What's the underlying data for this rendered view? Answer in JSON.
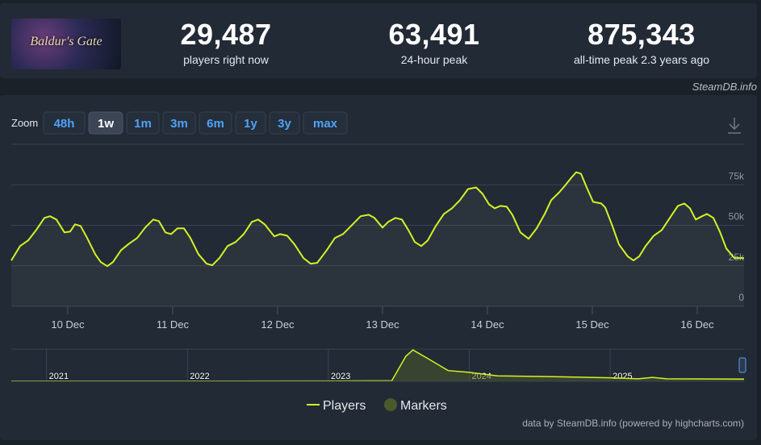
{
  "game_logo": "Baldur's Gate",
  "stats": [
    {
      "value": "29,487",
      "label": "players right now"
    },
    {
      "value": "63,491",
      "label": "24-hour peak"
    },
    {
      "value": "875,343",
      "label": "all-time peak 2.3 years ago"
    }
  ],
  "brand": "SteamDB.info",
  "zoom": {
    "label": "Zoom",
    "options": [
      "48h",
      "1w",
      "1m",
      "3m",
      "6m",
      "1y",
      "3y",
      "max"
    ],
    "active": 1
  },
  "credit": "data by SteamDB.info (powered by highcharts.com)",
  "chart_data": {
    "type": "line",
    "xlim": [
      9.462,
      16.446
    ],
    "xticks": [
      {
        "value": 10,
        "label": "10 Dec"
      },
      {
        "value": 11,
        "label": "11 Dec"
      },
      {
        "value": 12,
        "label": "12 Dec"
      },
      {
        "value": 13,
        "label": "13 Dec"
      },
      {
        "value": 14,
        "label": "14 Dec"
      },
      {
        "value": 15,
        "label": "15 Dec"
      },
      {
        "value": 16,
        "label": "16 Dec"
      }
    ],
    "ylim": [
      0,
      100000
    ],
    "yticks": [
      0,
      {
        "value": 25000,
        "label": "25k"
      },
      {
        "value": 50000,
        "label": "50k"
      },
      {
        "value": 75000,
        "label": "75k"
      }
    ],
    "grid": true,
    "series": [
      {
        "name": "Players",
        "color": "#d4f225",
        "x": [
          9.462,
          9.546,
          9.623,
          9.7,
          9.777,
          9.831,
          9.892,
          9.969,
          10.023,
          10.069,
          10.123,
          10.185,
          10.262,
          10.315,
          10.377,
          10.431,
          10.508,
          10.585,
          10.662,
          10.738,
          10.815,
          10.869,
          10.931,
          10.985,
          11.046,
          11.108,
          11.169,
          11.246,
          11.323,
          11.377,
          11.446,
          11.523,
          11.6,
          11.677,
          11.754,
          11.815,
          11.877,
          11.969,
          12.023,
          12.092,
          12.162,
          12.246,
          12.315,
          12.377,
          12.469,
          12.546,
          12.623,
          12.7,
          12.792,
          12.869,
          12.923,
          13,
          13.054,
          13.123,
          13.185,
          13.246,
          13.308,
          13.369,
          13.431,
          13.508,
          13.585,
          13.662,
          13.738,
          13.815,
          13.892,
          13.954,
          14.015,
          14.069,
          14.123,
          14.185,
          14.238,
          14.315,
          14.392,
          14.469,
          14.546,
          14.608,
          14.685,
          14.738,
          14.8,
          14.846,
          14.892,
          14.946,
          15.008,
          15.085,
          15.123,
          15.185,
          15.254,
          15.338,
          15.392,
          15.446,
          15.508,
          15.585,
          15.662,
          15.738,
          15.815,
          15.877,
          15.931,
          15.985,
          16.046,
          16.092,
          16.154,
          16.215,
          16.277,
          16.354,
          16.446
        ],
        "values": [
          28300,
          37200,
          40700,
          47100,
          54600,
          55600,
          53600,
          45600,
          46100,
          50600,
          49600,
          42200,
          32200,
          27300,
          24800,
          27300,
          34700,
          38700,
          42200,
          48600,
          53600,
          52600,
          45600,
          44600,
          48100,
          48100,
          42200,
          32200,
          26300,
          25300,
          29800,
          37200,
          39700,
          44600,
          52100,
          53600,
          50600,
          43200,
          44600,
          43600,
          38200,
          29800,
          26300,
          26800,
          34700,
          42200,
          44600,
          49600,
          55600,
          56500,
          54600,
          48600,
          52100,
          54600,
          53600,
          47100,
          39700,
          37200,
          40700,
          49600,
          57000,
          60500,
          65500,
          72400,
          73400,
          69400,
          63000,
          60500,
          62000,
          61500,
          56500,
          45600,
          41700,
          48100,
          57000,
          65500,
          70400,
          74400,
          79400,
          82800,
          81800,
          73400,
          64500,
          63500,
          61000,
          50600,
          38200,
          30800,
          28300,
          30800,
          37200,
          43600,
          47100,
          54600,
          62000,
          63500,
          60500,
          53600,
          55600,
          57000,
          54600,
          46100,
          35700,
          29800,
          29800
        ]
      },
      {
        "name": "Markers",
        "color": "#4b5a2a"
      }
    ],
    "navigator": {
      "xlim": [
        2020.75,
        2025.95
      ],
      "ylim": [
        0,
        900000
      ],
      "xticks": [
        {
          "value": 2021,
          "label": "2021"
        },
        {
          "value": 2022,
          "label": "2022"
        },
        {
          "value": 2023,
          "label": "2023"
        },
        {
          "value": 2024,
          "label": "2024"
        },
        {
          "value": 2025,
          "label": "2025"
        }
      ],
      "x": [
        2020.75,
        2022,
        2023,
        2023.45,
        2023.55,
        2023.6,
        2023.7,
        2023.85,
        2024,
        2024.2,
        2024.6,
        2025,
        2025.2,
        2025.3,
        2025.4,
        2025.95
      ],
      "values": [
        5000,
        5000,
        8000,
        15000,
        700000,
        875000,
        650000,
        300000,
        250000,
        150000,
        130000,
        100000,
        70000,
        110000,
        70000,
        60000
      ]
    }
  }
}
